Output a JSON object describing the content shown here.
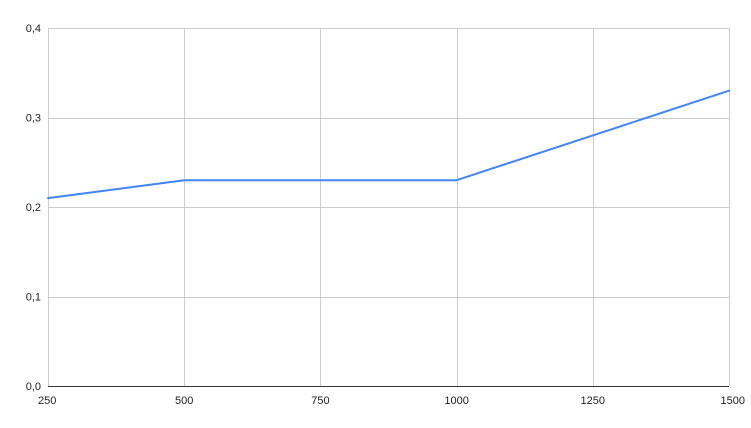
{
  "chart_data": {
    "type": "line",
    "title": "",
    "xlabel": "",
    "ylabel": "",
    "x": [
      250,
      500,
      1000,
      1500
    ],
    "series": [
      {
        "name": "",
        "color": "#4285f4",
        "values": [
          0.21,
          0.23,
          0.23,
          0.33
        ]
      }
    ],
    "xlim": [
      250,
      1500
    ],
    "ylim": [
      0,
      0.4
    ],
    "x_ticks": [
      250,
      500,
      750,
      1000,
      1250,
      1500
    ],
    "x_tick_labels": [
      "250",
      "500",
      "750",
      "1000",
      "1250",
      "1500"
    ],
    "y_ticks": [
      0,
      0.1,
      0.2,
      0.3,
      0.4
    ],
    "y_tick_labels": [
      "0,0",
      "0,1",
      "0,2",
      "0,3",
      "0,4"
    ],
    "grid": true,
    "legend": "none"
  },
  "colors": {
    "grid": "#cccccc",
    "axis": "#333333",
    "text": "#222222"
  }
}
